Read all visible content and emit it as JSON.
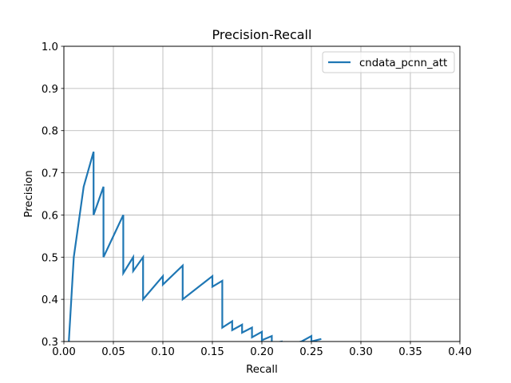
{
  "chart_data": {
    "type": "line",
    "title": "Precision-Recall",
    "xlabel": "Recall",
    "ylabel": "Precision",
    "xlim": [
      0.0,
      0.4
    ],
    "ylim": [
      0.3,
      1.0
    ],
    "grid": true,
    "legend_position": "top-right",
    "x_ticks": [
      "0.00",
      "0.05",
      "0.10",
      "0.15",
      "0.20",
      "0.25",
      "0.30",
      "0.35",
      "0.40"
    ],
    "y_ticks": [
      "0.3",
      "0.4",
      "0.5",
      "0.6",
      "0.7",
      "0.8",
      "0.9",
      "1.0"
    ],
    "series": [
      {
        "name": "cndata_pcnn_att",
        "color": "#1f77b4",
        "x": [
          0.005,
          0.01,
          0.02,
          0.03,
          0.03,
          0.04,
          0.04,
          0.05,
          0.06,
          0.06,
          0.07,
          0.07,
          0.08,
          0.08,
          0.1,
          0.1,
          0.12,
          0.12,
          0.15,
          0.15,
          0.16,
          0.16,
          0.17,
          0.17,
          0.18,
          0.18,
          0.19,
          0.19,
          0.2,
          0.2,
          0.21,
          0.21,
          0.22,
          0.22,
          0.23,
          0.24,
          0.25,
          0.25,
          0.26
        ],
        "y": [
          0.3,
          0.5,
          0.667,
          0.75,
          0.6,
          0.667,
          0.5,
          0.55,
          0.6,
          0.462,
          0.5,
          0.467,
          0.5,
          0.4,
          0.455,
          0.435,
          0.48,
          0.4,
          0.455,
          0.43,
          0.444,
          0.333,
          0.348,
          0.327,
          0.34,
          0.321,
          0.333,
          0.31,
          0.323,
          0.303,
          0.313,
          0.296,
          0.3,
          0.29,
          0.295,
          0.3,
          0.313,
          0.3,
          0.306
        ]
      }
    ]
  }
}
